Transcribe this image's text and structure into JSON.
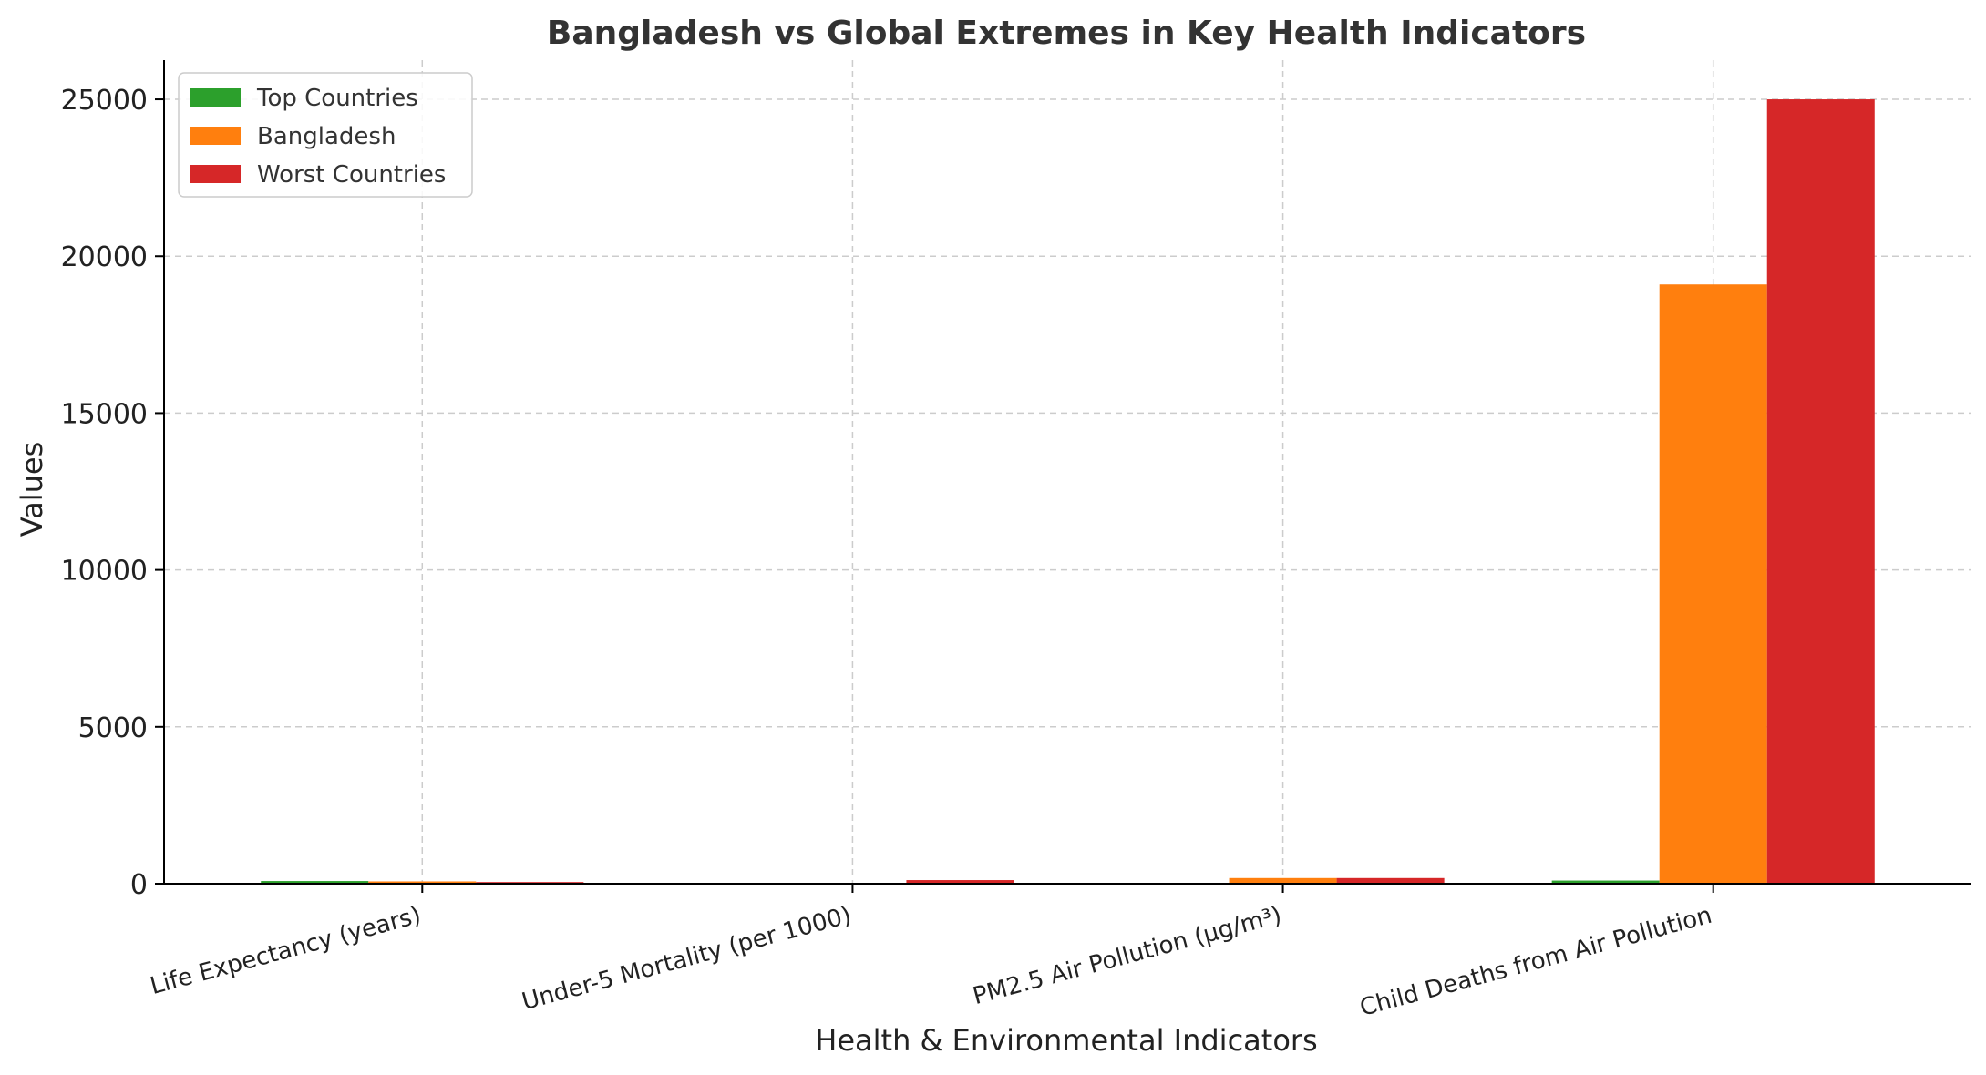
{
  "chart_data": {
    "type": "bar",
    "title": "Bangladesh vs Global Extremes in Key Health Indicators",
    "xlabel": "Health & Environmental Indicators",
    "ylabel": "Values",
    "categories": [
      "Life Expectancy (years)",
      "Under-5 Mortality (per 1000)",
      "PM2.5 Air Pollution (µg/m³)",
      "Child Deaths from Air Pollution"
    ],
    "series": [
      {
        "name": "Top Countries",
        "color": "#2ca02c",
        "values": [
          85,
          2,
          5,
          100
        ]
      },
      {
        "name": "Bangladesh",
        "color": "#ff7f0e",
        "values": [
          73,
          29,
          180,
          19100
        ]
      },
      {
        "name": "Worst Countries",
        "color": "#d62728",
        "values": [
          53,
          115,
          180,
          25000
        ]
      }
    ],
    "ylim": [
      0,
      26250
    ],
    "yticks": [
      "0",
      "5000",
      "10000",
      "15000",
      "20000",
      "25000"
    ],
    "grid": true,
    "legend_position": "top-left"
  }
}
